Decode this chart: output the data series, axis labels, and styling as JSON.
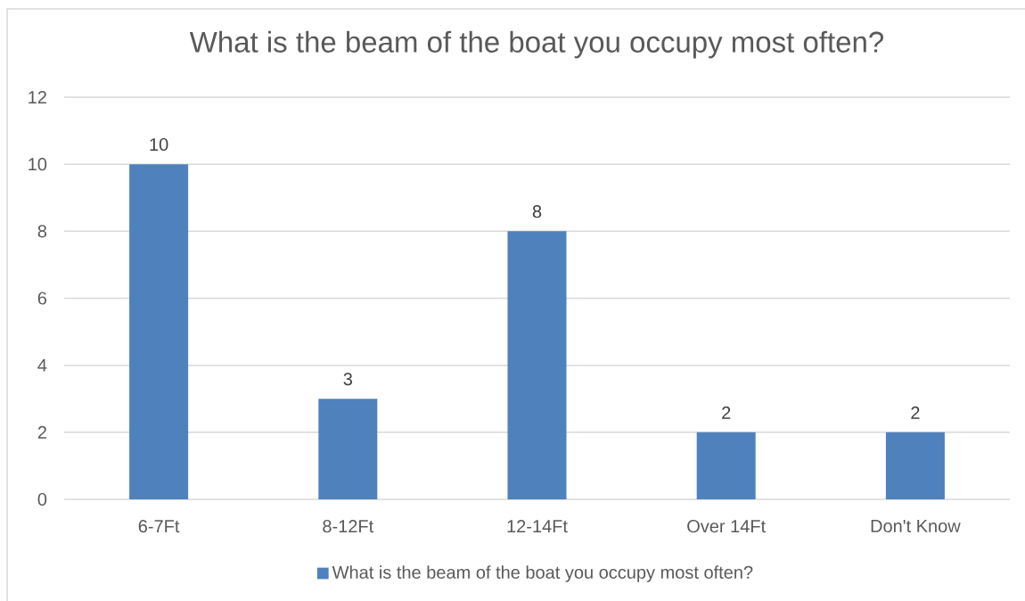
{
  "chart_data": {
    "type": "bar",
    "title": "What is the beam of the boat you occupy most often?",
    "categories": [
      "6-7Ft",
      "8-12Ft",
      "12-14Ft",
      "Over 14Ft",
      "Don't Know"
    ],
    "series": [
      {
        "name": "What is the beam of the boat you occupy most often?",
        "color": "#4f81bd",
        "values": [
          10,
          3,
          8,
          2,
          2
        ]
      }
    ],
    "ylim": [
      0,
      12
    ],
    "yticks": [
      0,
      2,
      4,
      6,
      8,
      10,
      12
    ],
    "grid": "y",
    "legend": "bottom",
    "data_labels": true
  }
}
